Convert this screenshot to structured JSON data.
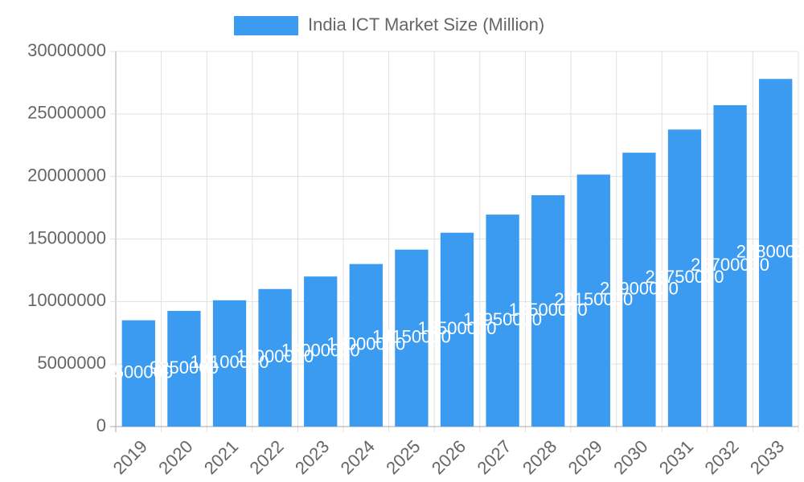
{
  "chart_data": {
    "type": "bar",
    "legend_label": "India ICT Market Size (Million)",
    "categories": [
      "2019",
      "2020",
      "2021",
      "2022",
      "2023",
      "2024",
      "2025",
      "2026",
      "2027",
      "2028",
      "2029",
      "2030",
      "2031",
      "2032",
      "2033"
    ],
    "values": [
      8500000,
      9250000,
      10100000,
      11000000,
      12000000,
      13000000,
      14150000,
      15500000,
      16950000,
      18500000,
      20150000,
      21900000,
      23750000,
      25700000,
      27800000
    ],
    "color": "#3a9bf0",
    "ylim": [
      0,
      30000000
    ],
    "yticks": [
      0,
      5000000,
      10000000,
      15000000,
      20000000,
      25000000,
      30000000
    ],
    "grid": true,
    "legend_position": "top"
  }
}
